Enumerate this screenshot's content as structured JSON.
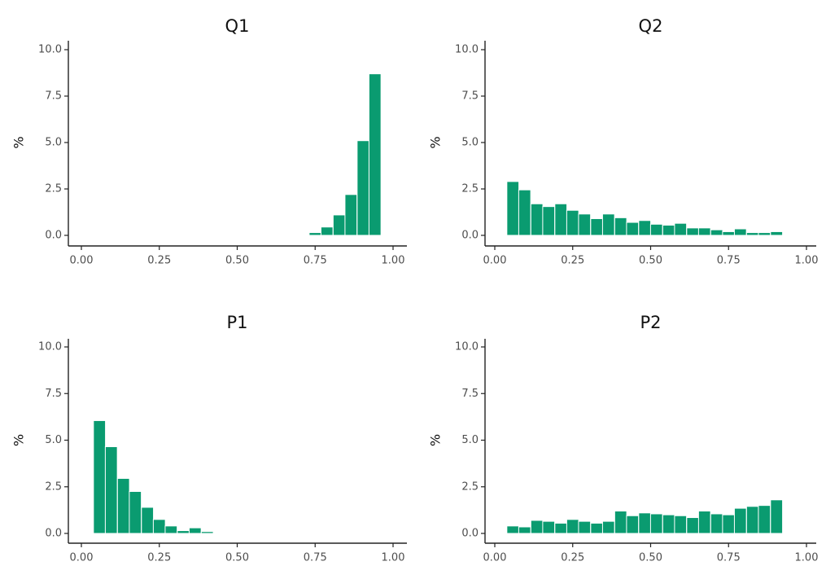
{
  "colors": {
    "bar_fill": "#0a9b70",
    "axis": "#222222",
    "tick_text": "#4d4d4d",
    "title_text": "#111111"
  },
  "chart_data": [
    {
      "type": "bar",
      "title": "Q1",
      "xlabel": "",
      "ylabel": "%",
      "xlim": [
        0,
        1
      ],
      "ylim": [
        0,
        10
      ],
      "x_ticks": [
        "0.00",
        "0.25",
        "0.50",
        "0.75",
        "1.00"
      ],
      "y_ticks": [
        "0.0",
        "2.5",
        "5.0",
        "7.5",
        "10.0"
      ],
      "bin_width": 0.0385,
      "x": [
        0.019,
        0.058,
        0.096,
        0.135,
        0.173,
        0.212,
        0.25,
        0.288,
        0.327,
        0.365,
        0.404,
        0.442,
        0.481,
        0.519,
        0.558,
        0.596,
        0.635,
        0.673,
        0.712,
        0.75,
        0.788,
        0.827,
        0.865,
        0.904,
        0.942,
        0.981
      ],
      "values": [
        0,
        0,
        0,
        0,
        0,
        0,
        0,
        0,
        0,
        0,
        0,
        0,
        0,
        0,
        0,
        0,
        0,
        0,
        0.02,
        0.15,
        0.45,
        1.1,
        2.2,
        5.1,
        8.7,
        0
      ],
      "grid": false
    },
    {
      "type": "bar",
      "title": "Q2",
      "xlabel": "",
      "ylabel": "%",
      "xlim": [
        0,
        1
      ],
      "ylim": [
        0,
        10
      ],
      "x_ticks": [
        "0.00",
        "0.25",
        "0.50",
        "0.75",
        "1.00"
      ],
      "y_ticks": [
        "0.0",
        "2.5",
        "5.0",
        "7.5",
        "10.0"
      ],
      "bin_width": 0.0385,
      "x": [
        0.019,
        0.058,
        0.096,
        0.135,
        0.173,
        0.212,
        0.25,
        0.288,
        0.327,
        0.365,
        0.404,
        0.442,
        0.481,
        0.519,
        0.558,
        0.596,
        0.635,
        0.673,
        0.712,
        0.75,
        0.788,
        0.827,
        0.865,
        0.904,
        0.942,
        0.981
      ],
      "values": [
        0,
        2.9,
        2.45,
        1.7,
        1.55,
        1.7,
        1.35,
        1.15,
        0.9,
        1.15,
        0.95,
        0.7,
        0.8,
        0.6,
        0.55,
        0.65,
        0.4,
        0.4,
        0.3,
        0.2,
        0.35,
        0.15,
        0.15,
        0.2,
        0,
        0
      ],
      "grid": false
    },
    {
      "type": "bar",
      "title": "P1",
      "xlabel": "",
      "ylabel": "%",
      "xlim": [
        0,
        1
      ],
      "ylim": [
        0,
        10
      ],
      "x_ticks": [
        "0.00",
        "0.25",
        "0.50",
        "0.75",
        "1.00"
      ],
      "y_ticks": [
        "0.0",
        "2.5",
        "5.0",
        "7.5",
        "10.0"
      ],
      "bin_width": 0.0385,
      "x": [
        0.019,
        0.058,
        0.096,
        0.135,
        0.173,
        0.212,
        0.25,
        0.288,
        0.327,
        0.365,
        0.404,
        0.442,
        0.481,
        0.519,
        0.558,
        0.596,
        0.635,
        0.673,
        0.712,
        0.75,
        0.788,
        0.827,
        0.865,
        0.904,
        0.942,
        0.981
      ],
      "values": [
        0,
        6.05,
        4.65,
        2.95,
        2.25,
        1.4,
        0.75,
        0.4,
        0.15,
        0.3,
        0.1,
        0,
        0,
        0,
        0,
        0,
        0,
        0,
        0,
        0,
        0,
        0,
        0,
        0,
        0,
        0
      ],
      "grid": false
    },
    {
      "type": "bar",
      "title": "P2",
      "xlabel": "",
      "ylabel": "%",
      "xlim": [
        0,
        1
      ],
      "ylim": [
        0,
        10
      ],
      "x_ticks": [
        "0.00",
        "0.25",
        "0.50",
        "0.75",
        "1.00"
      ],
      "y_ticks": [
        "0.0",
        "2.5",
        "5.0",
        "7.5",
        "10.0"
      ],
      "bin_width": 0.0385,
      "x": [
        0.019,
        0.058,
        0.096,
        0.135,
        0.173,
        0.212,
        0.25,
        0.288,
        0.327,
        0.365,
        0.404,
        0.442,
        0.481,
        0.519,
        0.558,
        0.596,
        0.635,
        0.673,
        0.712,
        0.75,
        0.788,
        0.827,
        0.865,
        0.904,
        0.942,
        0.981
      ],
      "values": [
        0,
        0.4,
        0.35,
        0.7,
        0.65,
        0.55,
        0.75,
        0.65,
        0.55,
        0.65,
        1.2,
        0.95,
        1.1,
        1.05,
        1.0,
        0.95,
        0.85,
        1.2,
        1.05,
        1.0,
        1.35,
        1.45,
        1.5,
        1.8,
        0,
        0
      ],
      "grid": false
    }
  ]
}
